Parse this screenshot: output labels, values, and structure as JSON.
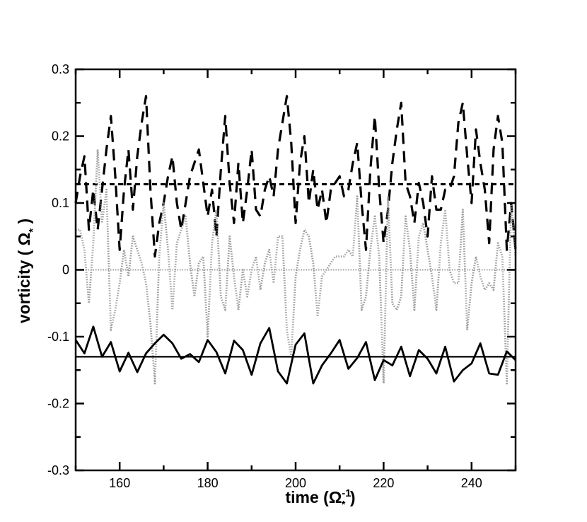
{
  "chart_data": {
    "type": "line",
    "title": "",
    "xlabel": {
      "main": "time (",
      "symbol": "Ω",
      "subscript": "*",
      "superscript": "-1",
      "close": " )"
    },
    "ylabel": {
      "main": "vorticity ( ",
      "symbol": "Ω",
      "subscript": "*",
      "close": " )"
    },
    "xlim": [
      150,
      250
    ],
    "ylim": [
      -0.3,
      0.3
    ],
    "xticks": [
      160,
      180,
      200,
      220,
      240
    ],
    "xtick_labels": [
      "160",
      "180",
      "200",
      "220",
      "240"
    ],
    "yticks": [
      -0.3,
      -0.2,
      -0.1,
      0,
      0.1,
      0.2,
      0.3
    ],
    "ytick_labels": [
      "-0.3",
      "-0.2",
      "-0.1",
      "0",
      "0.1",
      "0.2",
      "0.3"
    ],
    "grid": false,
    "legend": "none",
    "series": [
      {
        "style": "dashed-bold",
        "color": "#000000",
        "x": [
          150,
          151,
          152,
          153,
          154,
          155,
          156,
          157,
          158,
          159,
          160,
          161,
          162,
          163,
          164,
          165,
          166,
          167,
          168,
          169,
          170,
          171,
          172,
          173,
          174,
          175,
          176,
          177,
          178,
          179,
          180,
          181,
          182,
          183,
          184,
          185,
          186,
          187,
          188,
          189,
          190,
          191,
          192,
          193,
          194,
          195,
          196,
          197,
          198,
          199,
          200,
          201,
          202,
          203,
          204,
          205,
          206,
          207,
          208,
          209,
          210,
          211,
          212,
          213,
          214,
          215,
          216,
          217,
          218,
          219,
          220,
          221,
          222,
          223,
          224,
          225,
          226,
          227,
          228,
          229,
          230,
          231,
          232,
          233,
          234,
          235,
          236,
          237,
          238,
          239,
          240,
          241,
          242,
          243,
          244,
          245,
          246,
          247,
          248,
          249,
          250
        ],
        "y": [
          0.1,
          0.14,
          0.17,
          0.06,
          0.12,
          0.06,
          0.12,
          0.18,
          0.23,
          0.14,
          0.03,
          0.12,
          0.18,
          0.09,
          0.17,
          0.22,
          0.26,
          0.12,
          0.02,
          0.07,
          0.1,
          0.14,
          0.17,
          0.1,
          0.06,
          0.1,
          0.14,
          0.16,
          0.18,
          0.13,
          0.08,
          0.12,
          0.05,
          0.15,
          0.23,
          0.13,
          0.07,
          0.16,
          0.07,
          0.12,
          0.18,
          0.09,
          0.08,
          0.12,
          0.14,
          0.11,
          0.18,
          0.22,
          0.26,
          0.19,
          0.07,
          0.16,
          0.2,
          0.1,
          0.15,
          0.09,
          0.12,
          0.07,
          0.12,
          0.13,
          0.14,
          0.11,
          0.12,
          0.16,
          0.19,
          0.1,
          0.03,
          0.15,
          0.23,
          0.12,
          0.04,
          0.09,
          0.16,
          0.21,
          0.25,
          0.13,
          0.11,
          0.07,
          0.13,
          0.1,
          0.05,
          0.14,
          0.09,
          0.09,
          0.12,
          0.12,
          0.14,
          0.22,
          0.25,
          0.17,
          0.1,
          0.21,
          0.16,
          0.12,
          0.04,
          0.18,
          0.23,
          0.19,
          0.03,
          0.1,
          0.03
        ]
      },
      {
        "style": "short-dash-mean",
        "color": "#000000",
        "x": [
          150,
          250
        ],
        "y": [
          0.128,
          0.128
        ]
      },
      {
        "style": "dotted",
        "color": "#8c8c8c",
        "x": [
          150,
          151,
          152,
          153,
          154,
          155,
          156,
          157,
          158,
          159,
          160,
          161,
          162,
          163,
          164,
          165,
          166,
          167,
          168,
          169,
          170,
          171,
          172,
          173,
          174,
          175,
          176,
          177,
          178,
          179,
          180,
          181,
          182,
          183,
          184,
          185,
          186,
          187,
          188,
          189,
          190,
          191,
          192,
          193,
          194,
          195,
          196,
          197,
          198,
          199,
          200,
          201,
          202,
          203,
          204,
          205,
          206,
          207,
          208,
          209,
          210,
          211,
          212,
          213,
          214,
          215,
          216,
          217,
          218,
          219,
          220,
          221,
          222,
          223,
          224,
          225,
          226,
          227,
          228,
          229,
          230,
          231,
          232,
          233,
          234,
          235,
          236,
          237,
          238,
          239,
          240,
          241,
          242,
          243,
          244,
          245,
          246,
          247,
          248,
          249,
          250
        ],
        "y": [
          0.06,
          0.06,
          0.03,
          -0.05,
          0.04,
          0.18,
          0.07,
          0.12,
          -0.09,
          -0.06,
          -0.02,
          0.03,
          -0.01,
          0.05,
          0.03,
          0.01,
          -0.02,
          -0.08,
          -0.17,
          0.02,
          0.1,
          0.03,
          -0.06,
          0.04,
          0.06,
          0.08,
          0.01,
          -0.04,
          0.01,
          0.02,
          -0.1,
          0.04,
          0.09,
          -0.04,
          -0.06,
          0.05,
          -0.01,
          -0.06,
          0.0,
          -0.04,
          0.0,
          0.02,
          -0.03,
          0.01,
          0.03,
          -0.02,
          0.05,
          0.05,
          -0.09,
          -0.13,
          -0.01,
          0.03,
          0.06,
          0.05,
          0.01,
          -0.07,
          -0.01,
          0.0,
          0.01,
          0.02,
          0.02,
          0.02,
          0.03,
          0.02,
          0.11,
          -0.06,
          -0.04,
          0.03,
          0.08,
          0.02,
          -0.17,
          0.11,
          -0.05,
          -0.06,
          -0.04,
          0.08,
          0.03,
          -0.06,
          0.05,
          0.07,
          0.03,
          -0.01,
          -0.06,
          0.04,
          0.09,
          0.0,
          -0.02,
          -0.02,
          0.09,
          -0.09,
          -0.02,
          0.02,
          -0.01,
          -0.03,
          -0.02,
          -0.03,
          0.04,
          0.02,
          -0.17,
          0.1,
          0.02
        ]
      },
      {
        "style": "dotted-mean",
        "color": "#8c8c8c",
        "x": [
          150,
          250
        ],
        "y": [
          0.0,
          0.0
        ]
      },
      {
        "style": "solid",
        "color": "#000000",
        "x": [
          150,
          152,
          154,
          156,
          158,
          160,
          162,
          164,
          166,
          168,
          170,
          172,
          174,
          176,
          178,
          180,
          182,
          184,
          186,
          188,
          190,
          192,
          194,
          196,
          198,
          200,
          202,
          204,
          206,
          208,
          210,
          212,
          214,
          216,
          218,
          220,
          222,
          224,
          226,
          228,
          230,
          232,
          234,
          236,
          238,
          240,
          242,
          244,
          246,
          248,
          250
        ],
        "y": [
          -0.105,
          -0.125,
          -0.085,
          -0.13,
          -0.108,
          -0.152,
          -0.124,
          -0.153,
          -0.125,
          -0.11,
          -0.097,
          -0.11,
          -0.133,
          -0.126,
          -0.138,
          -0.105,
          -0.123,
          -0.155,
          -0.106,
          -0.12,
          -0.157,
          -0.11,
          -0.087,
          -0.152,
          -0.17,
          -0.112,
          -0.095,
          -0.17,
          -0.143,
          -0.125,
          -0.105,
          -0.148,
          -0.132,
          -0.108,
          -0.165,
          -0.135,
          -0.143,
          -0.115,
          -0.159,
          -0.12,
          -0.133,
          -0.155,
          -0.115,
          -0.167,
          -0.15,
          -0.14,
          -0.11,
          -0.155,
          -0.157,
          -0.122,
          -0.135
        ]
      },
      {
        "style": "solid-mean",
        "color": "#000000",
        "x": [
          150,
          250
        ],
        "y": [
          -0.13,
          -0.13
        ]
      }
    ]
  }
}
